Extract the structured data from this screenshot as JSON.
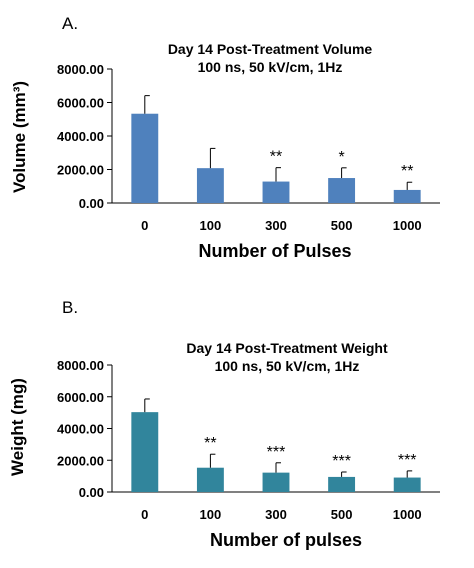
{
  "chart_data": [
    {
      "type": "bar",
      "panel_label": "A.",
      "title": "Day 14 Post-Treatment Volume",
      "subtitle": "100 ns, 50 kV/cm, 1Hz",
      "xlabel": "Number of Pulses",
      "ylabel": "Volume (mm³)",
      "categories": [
        "0",
        "100",
        "300",
        "500",
        "1000"
      ],
      "values": [
        5330,
        2080,
        1280,
        1490,
        780
      ],
      "errors": [
        1080,
        1180,
        830,
        610,
        460
      ],
      "significance": [
        "",
        "",
        "**",
        "*",
        "**"
      ],
      "yticks": [
        "0.00",
        "2000.00",
        "4000.00",
        "6000.00",
        "8000.00"
      ],
      "ylim": [
        0,
        8000
      ],
      "bar_color": "#4F81BD",
      "grid": false
    },
    {
      "type": "bar",
      "panel_label": "B.",
      "title": "Day 14 Post-Treatment  Weight",
      "subtitle": "100 ns, 50 kV/cm, 1Hz",
      "xlabel": "Number of pulses",
      "ylabel": "Weight (mg)",
      "categories": [
        "0",
        "100",
        "300",
        "500",
        "1000"
      ],
      "values": [
        5030,
        1530,
        1220,
        950,
        910
      ],
      "errors": [
        830,
        850,
        620,
        310,
        420
      ],
      "significance": [
        "",
        "**",
        "***",
        "***",
        "***"
      ],
      "yticks": [
        "0.00",
        "2000.00",
        "4000.00",
        "6000.00",
        "8000.00"
      ],
      "ylim": [
        0,
        8000
      ],
      "bar_color": "#31859C",
      "grid": false
    }
  ]
}
